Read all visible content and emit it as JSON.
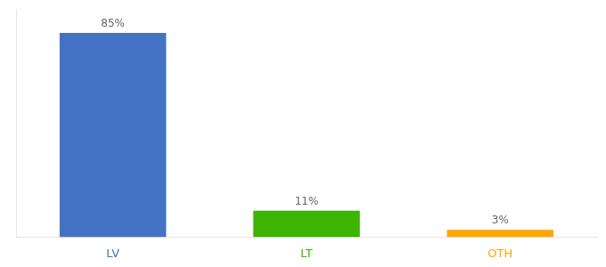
{
  "chart_data": {
    "type": "bar",
    "categories": [
      "LV",
      "LT",
      "OTH"
    ],
    "values": [
      85,
      11,
      3
    ],
    "value_labels": [
      "85%",
      "11%",
      "3%"
    ],
    "data_labels": true,
    "colors": [
      "#4472C4",
      "#3CB500",
      "#FFA500"
    ],
    "ylim": [
      0,
      95
    ],
    "grid": false,
    "tick_labels": "x"
  }
}
